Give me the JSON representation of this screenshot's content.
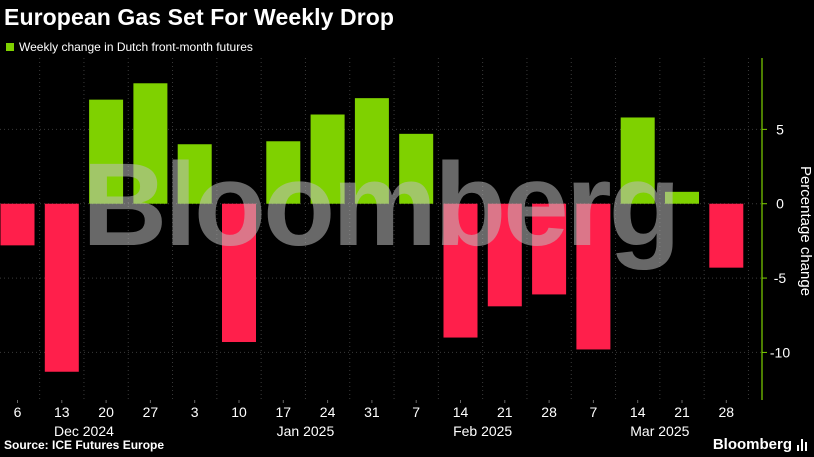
{
  "title": "European Gas Set For Weekly Drop",
  "legend": {
    "label": "Weekly change in Dutch front-month futures",
    "color": "#7fd100"
  },
  "source": "Source: ICE Futures Europe",
  "brand": "Bloomberg",
  "watermark": "Bloomberg",
  "colors": {
    "positive": "#7fd100",
    "negative": "#ff1f4b",
    "background": "#000000",
    "axis": "#7fd100",
    "grid": "#3a3a3a"
  },
  "chart_data": {
    "type": "bar",
    "title": "European Gas Set For Weekly Drop",
    "ylabel": "Percentage change",
    "ylim": [
      -13.2,
      9.8
    ],
    "yticks": [
      5,
      0,
      -5,
      -10
    ],
    "grid": true,
    "legend": "top-left",
    "categories": [
      "6",
      "13",
      "20",
      "27",
      "3",
      "10",
      "17",
      "24",
      "31",
      "7",
      "14",
      "21",
      "28",
      "7",
      "14",
      "21",
      "28"
    ],
    "month_labels": [
      {
        "label": "Dec 2024",
        "at_index": 1.5
      },
      {
        "label": "Jan 2025",
        "at_index": 6.5
      },
      {
        "label": "Feb 2025",
        "at_index": 10.5
      },
      {
        "label": "Mar 2025",
        "at_index": 14.5
      }
    ],
    "series": [
      {
        "name": "Weekly change in Dutch front-month futures",
        "values": [
          -2.8,
          -11.3,
          7.0,
          8.1,
          4.0,
          -9.3,
          4.2,
          6.0,
          7.1,
          4.7,
          -9.0,
          -6.9,
          -6.1,
          -9.8,
          5.8,
          0.8,
          -4.3
        ]
      }
    ]
  }
}
